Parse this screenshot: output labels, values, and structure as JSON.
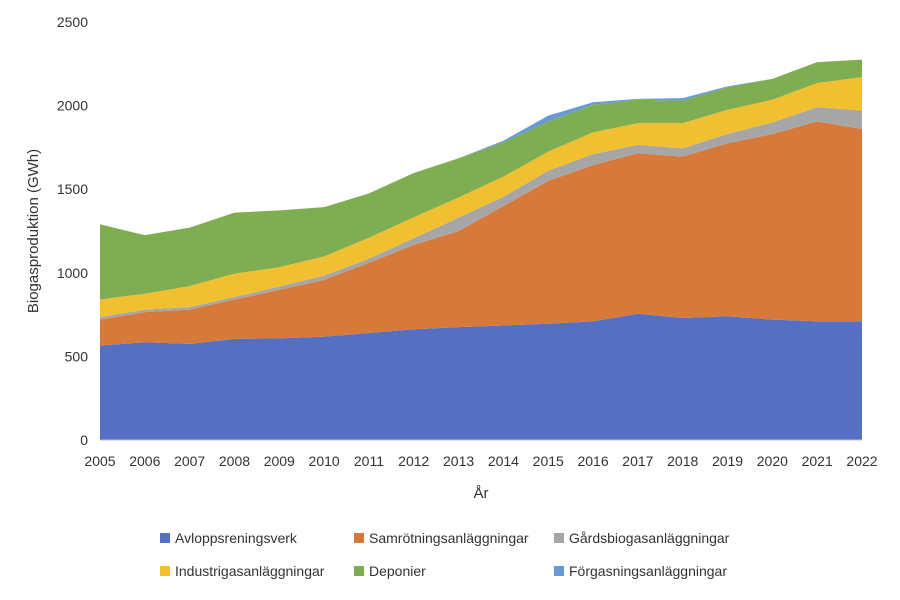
{
  "chart_data": {
    "type": "area",
    "stacked": true,
    "xlabel": "År",
    "ylabel": "Biogasproduktion (GWh)",
    "ylim": [
      0,
      2500
    ],
    "yticks": [
      0,
      500,
      1000,
      1500,
      2000,
      2500
    ],
    "grid": false,
    "legend_placement": "bottom",
    "x": [
      2005,
      2006,
      2007,
      2008,
      2009,
      2010,
      2011,
      2012,
      2013,
      2014,
      2015,
      2016,
      2017,
      2018,
      2019,
      2020,
      2021,
      2022
    ],
    "series": [
      {
        "name": "Avloppsreningsverk",
        "color": "#5570C2",
        "values": [
          565,
          585,
          575,
          605,
          608,
          618,
          640,
          662,
          675,
          685,
          695,
          710,
          755,
          730,
          740,
          720,
          710,
          710
        ]
      },
      {
        "name": "Samrötningsanläggningar",
        "color": "#D6793B",
        "values": [
          155,
          180,
          205,
          235,
          290,
          340,
          420,
          505,
          575,
          715,
          855,
          935,
          960,
          965,
          1035,
          1110,
          1195,
          1150
        ]
      },
      {
        "name": "Gårdsbiogasanläggningar",
        "color": "#A6A6A6",
        "values": [
          15,
          15,
          15,
          15,
          20,
          25,
          25,
          40,
          80,
          55,
          60,
          65,
          50,
          50,
          55,
          70,
          85,
          110
        ]
      },
      {
        "name": "Industrigasanläggningar",
        "color": "#F0C030",
        "values": [
          105,
          95,
          125,
          140,
          115,
          115,
          125,
          125,
          120,
          120,
          115,
          130,
          130,
          150,
          145,
          135,
          145,
          200
        ]
      },
      {
        "name": "Deponier",
        "color": "#7FAE52",
        "values": [
          450,
          350,
          350,
          365,
          340,
          295,
          265,
          265,
          235,
          205,
          180,
          165,
          140,
          135,
          135,
          125,
          125,
          105
        ]
      },
      {
        "name": "Förgasningsanläggningar",
        "color": "#6699D6",
        "values": [
          0,
          0,
          0,
          0,
          0,
          0,
          0,
          0,
          0,
          10,
          35,
          15,
          5,
          15,
          5,
          0,
          0,
          0
        ]
      }
    ]
  }
}
